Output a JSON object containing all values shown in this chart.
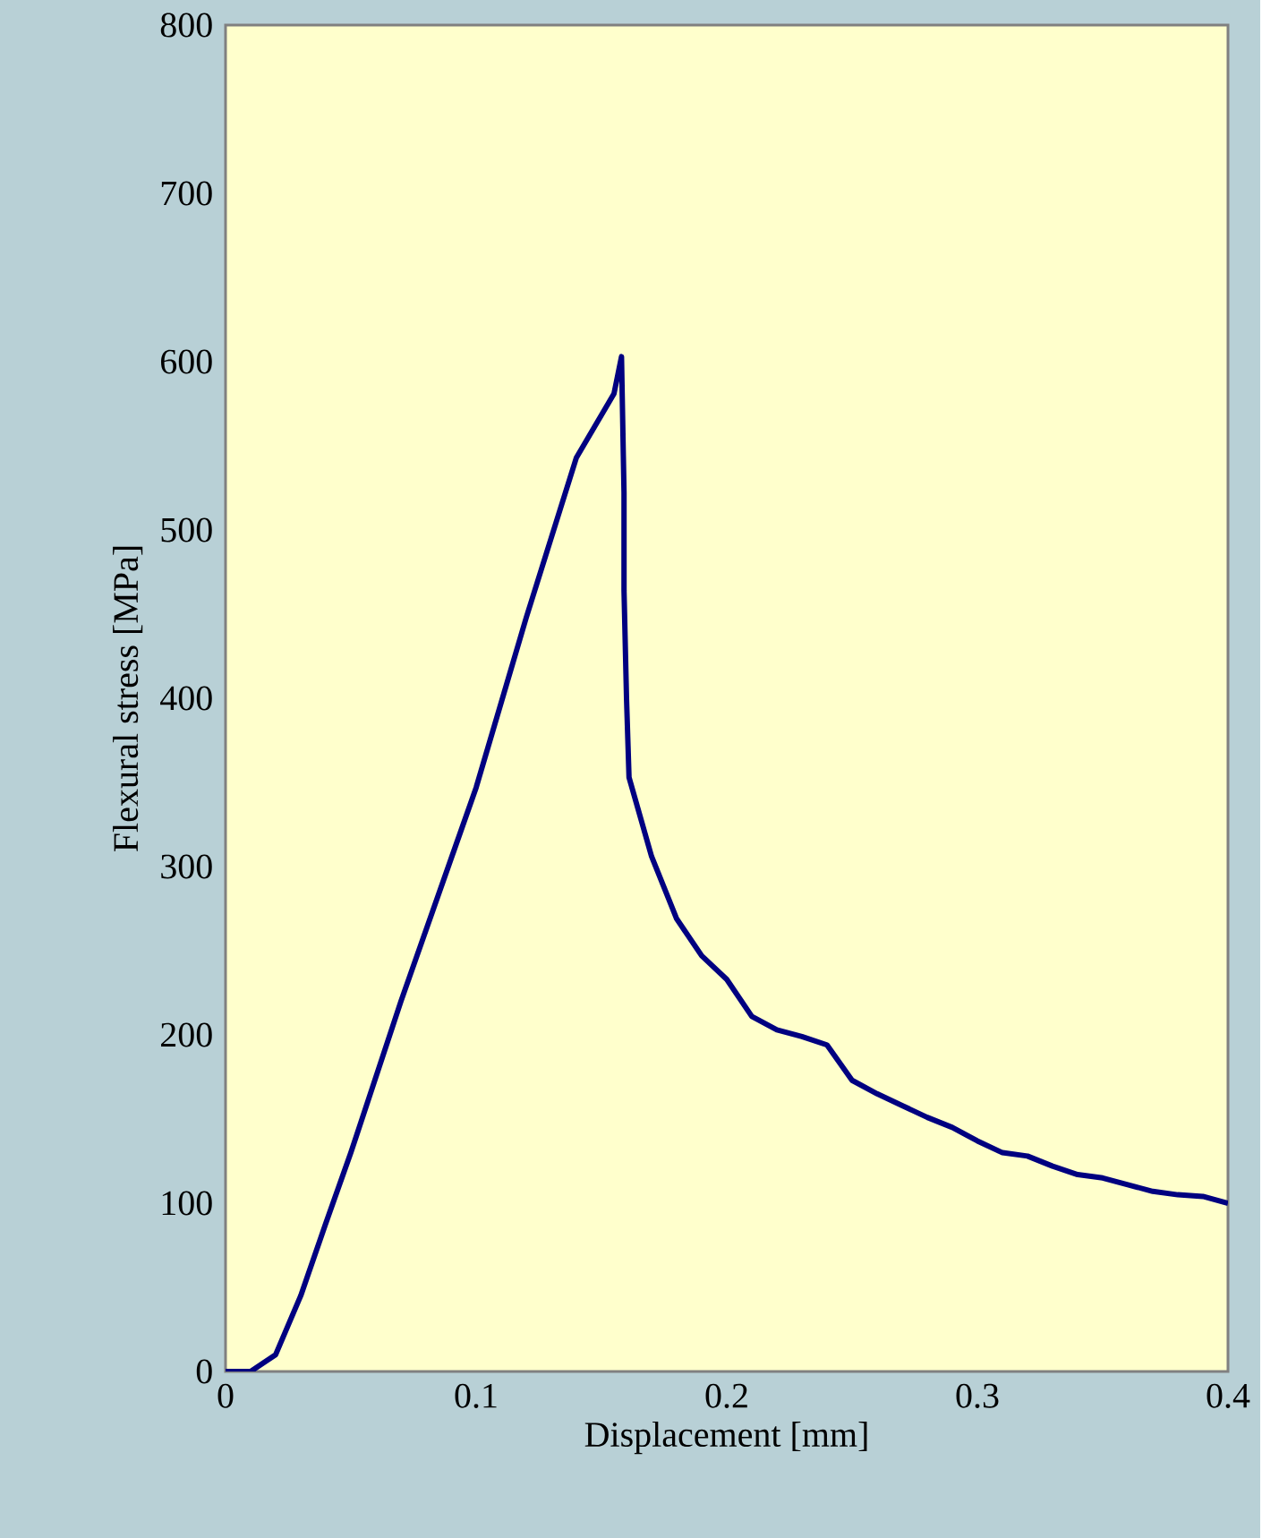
{
  "chart_data": {
    "type": "line",
    "xlabel": "Displacement [mm]",
    "ylabel": "Flexural stress [MPa]",
    "x": [
      0,
      0.01,
      0.02,
      0.03,
      0.04,
      0.05,
      0.07,
      0.1,
      0.12,
      0.14,
      0.155,
      0.158,
      0.159,
      0.159,
      0.16,
      0.161,
      0.17,
      0.18,
      0.19,
      0.2,
      0.21,
      0.22,
      0.23,
      0.24,
      0.25,
      0.26,
      0.27,
      0.28,
      0.29,
      0.3,
      0.31,
      0.32,
      0.33,
      0.34,
      0.35,
      0.36,
      0.37,
      0.38,
      0.39,
      0.4
    ],
    "series": [
      {
        "color": "#000080",
        "values": [
          0,
          0,
          10,
          45,
          88,
          130,
          220,
          347,
          448,
          543,
          581,
          603,
          522,
          464,
          400,
          353,
          306,
          269,
          247,
          233,
          211,
          203,
          199,
          194,
          173,
          165,
          158,
          151,
          145,
          137,
          130,
          128,
          122,
          117,
          115,
          111,
          107,
          105,
          104,
          100
        ]
      }
    ],
    "xlim": [
      0,
      0.4
    ],
    "ylim": [
      0,
      800
    ],
    "xticks": [
      0,
      0.1,
      0.2,
      0.3,
      0.4
    ],
    "yticks": [
      0,
      100,
      200,
      300,
      400,
      500,
      600,
      700,
      800
    ],
    "grid": false,
    "legend": false,
    "marker": "none",
    "line_style": "solid"
  }
}
